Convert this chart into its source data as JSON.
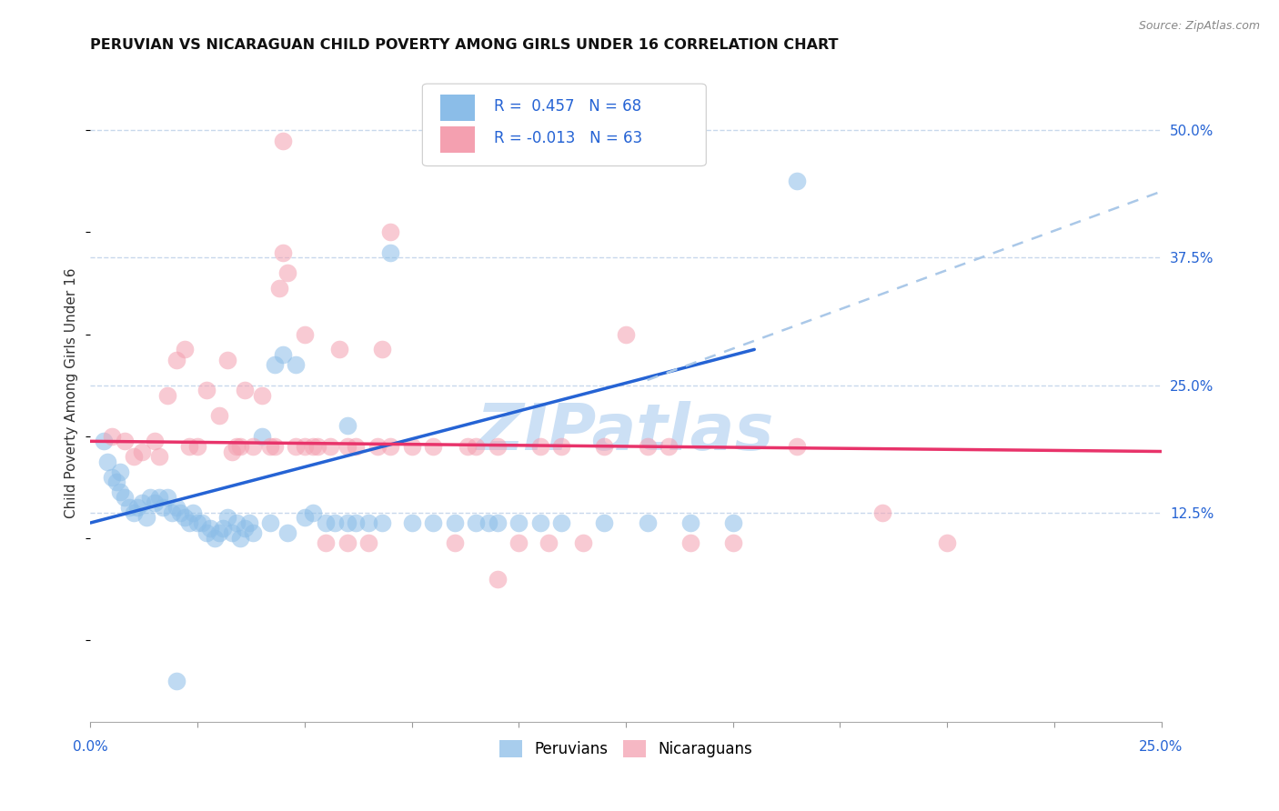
{
  "title": "PERUVIAN VS NICARAGUAN CHILD POVERTY AMONG GIRLS UNDER 16 CORRELATION CHART",
  "source": "Source: ZipAtlas.com",
  "ylabel": "Child Poverty Among Girls Under 16",
  "ytick_labels": [
    "12.5%",
    "25.0%",
    "37.5%",
    "50.0%"
  ],
  "ytick_values": [
    0.125,
    0.25,
    0.375,
    0.5
  ],
  "xlim": [
    0.0,
    0.25
  ],
  "ylim": [
    -0.08,
    0.565
  ],
  "legend_label1": "R =  0.457   N = 68",
  "legend_label2": "R = -0.013   N = 63",
  "legend_bottom_label1": "Peruvians",
  "legend_bottom_label2": "Nicaraguans",
  "blue_color": "#8BBDE8",
  "pink_color": "#F4A0B0",
  "blue_line_color": "#2563d4",
  "pink_line_color": "#e8336a",
  "dashed_color": "#aac8e8",
  "blue_scatter": [
    [
      0.003,
      0.195
    ],
    [
      0.004,
      0.175
    ],
    [
      0.005,
      0.16
    ],
    [
      0.006,
      0.155
    ],
    [
      0.007,
      0.145
    ],
    [
      0.007,
      0.165
    ],
    [
      0.008,
      0.14
    ],
    [
      0.009,
      0.13
    ],
    [
      0.01,
      0.125
    ],
    [
      0.011,
      0.13
    ],
    [
      0.012,
      0.135
    ],
    [
      0.013,
      0.12
    ],
    [
      0.014,
      0.14
    ],
    [
      0.015,
      0.135
    ],
    [
      0.016,
      0.14
    ],
    [
      0.017,
      0.13
    ],
    [
      0.018,
      0.14
    ],
    [
      0.019,
      0.125
    ],
    [
      0.02,
      0.13
    ],
    [
      0.021,
      0.125
    ],
    [
      0.022,
      0.12
    ],
    [
      0.023,
      0.115
    ],
    [
      0.024,
      0.125
    ],
    [
      0.025,
      0.115
    ],
    [
      0.026,
      0.115
    ],
    [
      0.027,
      0.105
    ],
    [
      0.028,
      0.11
    ],
    [
      0.029,
      0.1
    ],
    [
      0.03,
      0.105
    ],
    [
      0.031,
      0.11
    ],
    [
      0.032,
      0.12
    ],
    [
      0.033,
      0.105
    ],
    [
      0.034,
      0.115
    ],
    [
      0.035,
      0.1
    ],
    [
      0.036,
      0.11
    ],
    [
      0.037,
      0.115
    ],
    [
      0.038,
      0.105
    ],
    [
      0.04,
      0.2
    ],
    [
      0.042,
      0.115
    ],
    [
      0.043,
      0.27
    ],
    [
      0.045,
      0.28
    ],
    [
      0.046,
      0.105
    ],
    [
      0.048,
      0.27
    ],
    [
      0.05,
      0.12
    ],
    [
      0.052,
      0.125
    ],
    [
      0.055,
      0.115
    ],
    [
      0.057,
      0.115
    ],
    [
      0.06,
      0.115
    ],
    [
      0.06,
      0.21
    ],
    [
      0.062,
      0.115
    ],
    [
      0.065,
      0.115
    ],
    [
      0.068,
      0.115
    ],
    [
      0.07,
      0.38
    ],
    [
      0.075,
      0.115
    ],
    [
      0.08,
      0.115
    ],
    [
      0.085,
      0.115
    ],
    [
      0.09,
      0.115
    ],
    [
      0.093,
      0.115
    ],
    [
      0.095,
      0.115
    ],
    [
      0.1,
      0.115
    ],
    [
      0.105,
      0.115
    ],
    [
      0.11,
      0.115
    ],
    [
      0.12,
      0.115
    ],
    [
      0.13,
      0.115
    ],
    [
      0.14,
      0.115
    ],
    [
      0.15,
      0.115
    ],
    [
      0.165,
      0.45
    ],
    [
      0.02,
      -0.04
    ]
  ],
  "pink_scatter": [
    [
      0.005,
      0.2
    ],
    [
      0.008,
      0.195
    ],
    [
      0.01,
      0.18
    ],
    [
      0.012,
      0.185
    ],
    [
      0.015,
      0.195
    ],
    [
      0.016,
      0.18
    ],
    [
      0.018,
      0.24
    ],
    [
      0.02,
      0.275
    ],
    [
      0.022,
      0.285
    ],
    [
      0.023,
      0.19
    ],
    [
      0.025,
      0.19
    ],
    [
      0.027,
      0.245
    ],
    [
      0.03,
      0.22
    ],
    [
      0.032,
      0.275
    ],
    [
      0.033,
      0.185
    ],
    [
      0.034,
      0.19
    ],
    [
      0.035,
      0.19
    ],
    [
      0.036,
      0.245
    ],
    [
      0.038,
      0.19
    ],
    [
      0.04,
      0.24
    ],
    [
      0.042,
      0.19
    ],
    [
      0.043,
      0.19
    ],
    [
      0.044,
      0.345
    ],
    [
      0.045,
      0.38
    ],
    [
      0.046,
      0.36
    ],
    [
      0.048,
      0.19
    ],
    [
      0.05,
      0.19
    ],
    [
      0.05,
      0.3
    ],
    [
      0.052,
      0.19
    ],
    [
      0.053,
      0.19
    ],
    [
      0.055,
      0.095
    ],
    [
      0.056,
      0.19
    ],
    [
      0.058,
      0.285
    ],
    [
      0.06,
      0.095
    ],
    [
      0.06,
      0.19
    ],
    [
      0.062,
      0.19
    ],
    [
      0.065,
      0.095
    ],
    [
      0.067,
      0.19
    ],
    [
      0.068,
      0.285
    ],
    [
      0.07,
      0.19
    ],
    [
      0.075,
      0.19
    ],
    [
      0.08,
      0.19
    ],
    [
      0.085,
      0.095
    ],
    [
      0.088,
      0.19
    ],
    [
      0.09,
      0.19
    ],
    [
      0.095,
      0.19
    ],
    [
      0.1,
      0.095
    ],
    [
      0.105,
      0.19
    ],
    [
      0.107,
      0.095
    ],
    [
      0.11,
      0.19
    ],
    [
      0.115,
      0.095
    ],
    [
      0.12,
      0.19
    ],
    [
      0.125,
      0.3
    ],
    [
      0.13,
      0.19
    ],
    [
      0.135,
      0.19
    ],
    [
      0.14,
      0.095
    ],
    [
      0.15,
      0.095
    ],
    [
      0.165,
      0.19
    ],
    [
      0.185,
      0.125
    ],
    [
      0.2,
      0.095
    ],
    [
      0.045,
      0.49
    ],
    [
      0.07,
      0.4
    ],
    [
      0.095,
      0.06
    ]
  ],
  "blue_line_solid": {
    "x0": 0.0,
    "y0": 0.115,
    "x1": 0.155,
    "y1": 0.285
  },
  "blue_line_dashed": {
    "x0": 0.13,
    "y0": 0.255,
    "x1": 0.25,
    "y1": 0.44
  },
  "pink_line": {
    "x0": 0.0,
    "y0": 0.195,
    "x1": 0.25,
    "y1": 0.185
  },
  "watermark": "ZIPatlas",
  "watermark_color": "#cce0f5",
  "background_color": "#ffffff",
  "grid_color": "#c8d8ec",
  "title_fontsize": 11.5,
  "axis_fontsize": 10,
  "label_fontsize": 11
}
